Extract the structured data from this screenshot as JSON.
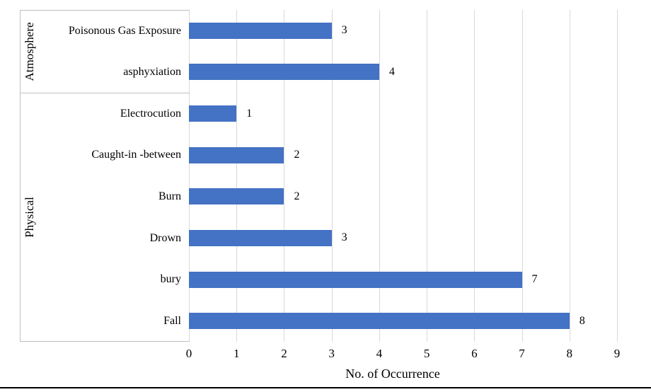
{
  "chart_data": {
    "type": "bar",
    "orientation": "horizontal",
    "title": "",
    "xlabel": "No. of Occurrence",
    "ylabel": "",
    "xlim": [
      0,
      9
    ],
    "x_ticks": [
      "0",
      "1",
      "2",
      "3",
      "4",
      "5",
      "6",
      "7",
      "8",
      "9"
    ],
    "grid": true,
    "legend": false,
    "bar_color": "#4472C4",
    "gridline_color": "#D9D9D9",
    "axis_border_color": "#BFBFBF",
    "groups": [
      {
        "label": "Atmosphere",
        "categories": [
          "Poisonous Gas Exposure",
          "asphyxiation"
        ],
        "values": [
          3,
          4
        ]
      },
      {
        "label": "Physical",
        "categories": [
          "Electrocution",
          "Caught-in -between",
          "Burn",
          "Drown",
          "bury",
          "Fall"
        ],
        "values": [
          1,
          2,
          2,
          3,
          7,
          8
        ]
      }
    ]
  }
}
